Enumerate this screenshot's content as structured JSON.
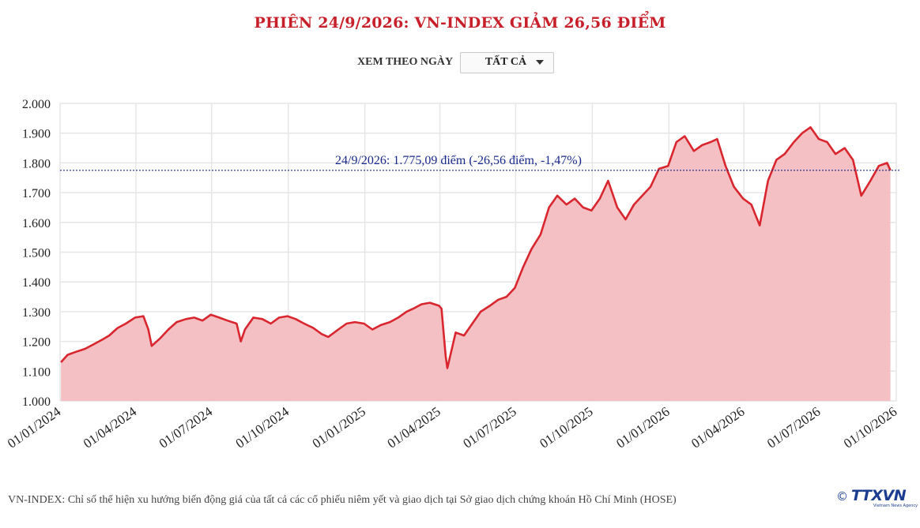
{
  "header": {
    "title": "PHIÊN 24/9/2026: VN-INDEX GIẢM 26,56 ĐIỂM"
  },
  "filter": {
    "label": "XEM THEO NGÀY",
    "value": "TẤT CẢ"
  },
  "footnote": "VN-INDEX: Chỉ số thể hiện xu hướng biến động giá của tất cả các cổ phiếu niêm yết và giao dịch tại Sở giao dịch chứng khoán Hồ Chí Minh (HOSE)",
  "logo": {
    "copyright": "©",
    "text": "TTXVN",
    "subtitle": "Vietnam News Agency",
    "color": "#1a3d8f"
  },
  "colors": {
    "title": "#c8202a",
    "line": "#d9262e",
    "area": "#f3bdc0",
    "annotation": "#1a2a8c",
    "grid": "#e6e6e6"
  },
  "chart_data": {
    "type": "area",
    "x_axis": {
      "type": "date",
      "range": [
        "2024-01-01",
        "2026-10-01"
      ],
      "tick_labels": [
        "01/01/2024",
        "01/04/2024",
        "01/07/2024",
        "01/10/2024",
        "01/01/2025",
        "01/04/2025",
        "01/07/2025",
        "01/10/2025",
        "01/01/2026",
        "01/04/2026",
        "01/07/2026",
        "01/10/2026"
      ],
      "tick_dates": [
        "2024-01-01",
        "2024-04-01",
        "2024-07-01",
        "2024-10-01",
        "2025-01-01",
        "2025-04-01",
        "2025-07-01",
        "2025-10-01",
        "2026-01-01",
        "2026-04-01",
        "2026-07-01",
        "2026-10-01"
      ]
    },
    "y_axis": {
      "range": [
        1000,
        2000
      ],
      "ticks": [
        1000,
        1100,
        1200,
        1300,
        1400,
        1500,
        1600,
        1700,
        1800,
        1900,
        2000
      ],
      "tick_labels": [
        "1.000",
        "1.100",
        "1.200",
        "1.300",
        "1.400",
        "1.500",
        "1.600",
        "1.700",
        "1.800",
        "1.900",
        "2.000"
      ]
    },
    "grid": true,
    "series": [
      {
        "x": [
          "2024-01-02",
          "2024-01-10",
          "2024-01-20",
          "2024-01-31",
          "2024-02-10",
          "2024-02-20",
          "2024-02-29",
          "2024-03-10",
          "2024-03-20",
          "2024-03-31",
          "2024-04-10",
          "2024-04-16",
          "2024-04-20",
          "2024-04-30",
          "2024-05-10",
          "2024-05-20",
          "2024-05-31",
          "2024-06-10",
          "2024-06-20",
          "2024-06-30",
          "2024-07-10",
          "2024-07-20",
          "2024-07-31",
          "2024-08-05",
          "2024-08-10",
          "2024-08-20",
          "2024-08-31",
          "2024-09-10",
          "2024-09-20",
          "2024-09-30",
          "2024-10-10",
          "2024-10-20",
          "2024-10-31",
          "2024-11-10",
          "2024-11-18",
          "2024-11-30",
          "2024-12-10",
          "2024-12-20",
          "2024-12-31",
          "2025-01-10",
          "2025-01-20",
          "2025-01-31",
          "2025-02-10",
          "2025-02-20",
          "2025-02-28",
          "2025-03-10",
          "2025-03-20",
          "2025-03-31",
          "2025-04-03",
          "2025-04-08",
          "2025-04-10",
          "2025-04-20",
          "2025-04-30",
          "2025-05-10",
          "2025-05-20",
          "2025-05-31",
          "2025-06-10",
          "2025-06-20",
          "2025-06-30",
          "2025-07-10",
          "2025-07-20",
          "2025-07-31",
          "2025-08-10",
          "2025-08-20",
          "2025-08-31",
          "2025-09-10",
          "2025-09-20",
          "2025-09-30",
          "2025-10-10",
          "2025-10-20",
          "2025-10-31",
          "2025-11-10",
          "2025-11-20",
          "2025-11-30",
          "2025-12-10",
          "2025-12-20",
          "2025-12-31",
          "2026-01-10",
          "2026-01-20",
          "2026-01-31",
          "2026-02-10",
          "2026-02-20",
          "2026-02-28",
          "2026-03-10",
          "2026-03-20",
          "2026-03-31",
          "2026-04-10",
          "2026-04-20",
          "2026-04-30",
          "2026-05-10",
          "2026-05-20",
          "2026-05-31",
          "2026-06-10",
          "2026-06-20",
          "2026-06-30",
          "2026-07-10",
          "2026-07-20",
          "2026-07-31",
          "2026-08-10",
          "2026-08-20",
          "2026-08-31",
          "2026-09-10",
          "2026-09-20",
          "2026-09-24"
        ],
        "values": [
          1130,
          1155,
          1165,
          1175,
          1190,
          1205,
          1220,
          1245,
          1260,
          1280,
          1285,
          1240,
          1185,
          1210,
          1240,
          1265,
          1275,
          1280,
          1270,
          1290,
          1280,
          1270,
          1260,
          1200,
          1240,
          1280,
          1275,
          1260,
          1280,
          1285,
          1275,
          1260,
          1245,
          1225,
          1215,
          1240,
          1260,
          1265,
          1260,
          1240,
          1255,
          1265,
          1280,
          1300,
          1310,
          1325,
          1330,
          1320,
          1310,
          1150,
          1110,
          1230,
          1220,
          1260,
          1300,
          1320,
          1340,
          1350,
          1380,
          1450,
          1510,
          1560,
          1650,
          1690,
          1660,
          1680,
          1650,
          1640,
          1680,
          1740,
          1650,
          1610,
          1660,
          1690,
          1720,
          1780,
          1790,
          1870,
          1890,
          1840,
          1860,
          1870,
          1880,
          1790,
          1720,
          1680,
          1660,
          1590,
          1740,
          1810,
          1830,
          1870,
          1900,
          1920,
          1880,
          1870,
          1830,
          1850,
          1810,
          1690,
          1740,
          1790,
          1800,
          1775
        ]
      }
    ],
    "annotation": {
      "text": "24/9/2026: 1.775,09 điểm (-26,56 điểm, -1,47%)",
      "value": 1775.09
    }
  }
}
